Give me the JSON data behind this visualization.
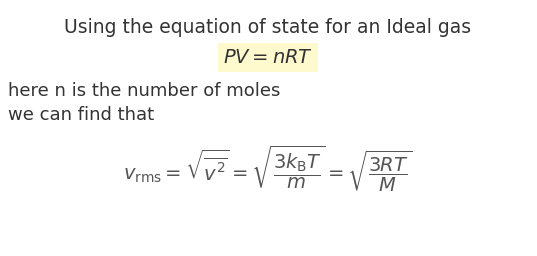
{
  "title_line": "Using the equation of state for an Ideal gas",
  "equation1": "$PV = nRT$",
  "eq1_highlight": "#FFFACD",
  "text_line1": "here n is the number of moles",
  "text_line2": "we can find that",
  "equation2": "$v_{\\mathrm{rms}} = \\sqrt{\\overline{v^2}} = \\sqrt{\\dfrac{3k_{\\mathrm{B}}T}{m}} = \\sqrt{\\dfrac{3RT}{M}}$",
  "bg_color": "#ffffff",
  "text_color": "#333333",
  "eq_color": "#555555",
  "title_fontsize": 13.5,
  "body_fontsize": 13,
  "eq1_fontsize": 14,
  "eq2_fontsize": 14
}
